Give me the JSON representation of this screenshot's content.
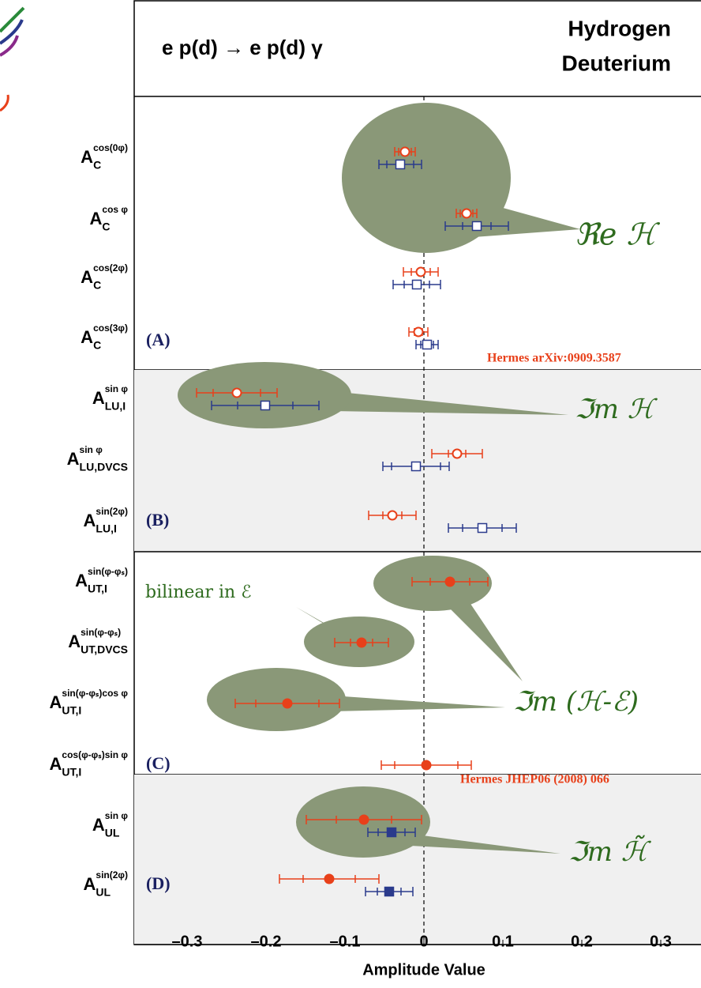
{
  "chart_data": {
    "type": "forest",
    "title": "e p(d) → e p(d) γ",
    "xlabel": "Amplitude Value",
    "xlim": [
      -0.367,
      0.351
    ],
    "xticks": [
      {
        "value": -0.3,
        "label": "–0.3"
      },
      {
        "value": -0.2,
        "label": "–0.2"
      },
      {
        "value": -0.1,
        "label": "–0.1"
      },
      0,
      0.1,
      0.2,
      0.3
    ],
    "series": [
      {
        "name": "Hydrogen",
        "color": "#e8401a"
      },
      {
        "name": "Deuterium",
        "color": "#2a3a8c"
      }
    ],
    "annotations": [
      "ℜe ℋ",
      "ℑm ℋ",
      "bilinear in ℰ",
      "ℑm (ℋ-ℰ)",
      "ℑm ℋ̃"
    ],
    "sections": [
      {
        "label": "(A)",
        "note": "Hermes arXiv:0909.3587",
        "shaded": false,
        "filled": false,
        "categories": [
          {
            "base": "A",
            "sup": "cos(0φ)",
            "sub": "C"
          },
          {
            "base": "A",
            "sup": "cos φ",
            "sub": "C"
          },
          {
            "base": "A",
            "sup": "cos(2φ)",
            "sub": "C"
          },
          {
            "base": "A",
            "sup": "cos(3φ)",
            "sub": "C"
          }
        ],
        "series": [
          {
            "values": [
              -0.024,
              0.054,
              -0.004,
              -0.007
            ],
            "stat": [
              0.008,
              0.008,
              0.012,
              0.005
            ],
            "total": [
              0.013,
              0.013,
              0.022,
              0.012
            ]
          },
          {
            "values": [
              -0.03,
              0.067,
              -0.009,
              0.004
            ],
            "stat": [
              0.017,
              0.018,
              0.016,
              0.008
            ],
            "total": [
              0.027,
              0.04,
              0.03,
              0.014
            ]
          }
        ]
      },
      {
        "label": "(B)",
        "note": null,
        "shaded": true,
        "filled": false,
        "categories": [
          {
            "base": "A",
            "sup": "sin φ",
            "sub": "LU,I"
          },
          {
            "base": "A",
            "sup": "sin φ",
            "sub": "LU,DVCS"
          },
          {
            "base": "A",
            "sup": "sin(2φ)",
            "sub": "LU,I"
          }
        ],
        "series": [
          {
            "values": [
              -0.237,
              0.042,
              -0.04
            ],
            "stat": [
              0.03,
              0.011,
              0.012
            ],
            "total": [
              0.051,
              0.032,
              0.03
            ]
          },
          {
            "values": [
              -0.201,
              -0.01,
              0.074
            ],
            "stat": [
              0.035,
              0.031,
              0.025
            ],
            "total": [
              0.068,
              0.042,
              0.043
            ]
          }
        ]
      },
      {
        "label": "(C)",
        "note": "Hermes JHEP06 (2008) 066",
        "shaded": false,
        "filled": true,
        "categories": [
          {
            "base": "A",
            "sup": "sin(φ-φₛ)",
            "sub": "UT,I"
          },
          {
            "base": "A",
            "sup": "sin(φ-φₛ)",
            "sub": "UT,DVCS"
          },
          {
            "base": "A",
            "sup": "sin(φ-φₛ)cos φ",
            "sub": "UT,I"
          },
          {
            "base": "A",
            "sup": "cos(φ-φₛ)sin φ",
            "sub": "UT,I"
          }
        ],
        "series": [
          {
            "values": [
              0.033,
              -0.079,
              -0.173,
              0.003
            ],
            "stat": [
              0.025,
              0.014,
              0.04,
              0.04
            ],
            "total": [
              0.048,
              0.034,
              0.066,
              0.057
            ]
          },
          {
            "values": [
              null,
              null,
              null,
              null
            ],
            "stat": [
              null,
              null,
              null,
              null
            ],
            "total": [
              null,
              null,
              null,
              null
            ]
          }
        ]
      },
      {
        "label": "(D)",
        "note": null,
        "shaded": true,
        "filled": true,
        "categories": [
          {
            "base": "A",
            "sup": "sin φ",
            "sub": "UL"
          },
          {
            "base": "A",
            "sup": "sin(2φ)",
            "sub": "UL"
          }
        ],
        "series": [
          {
            "values": [
              -0.076,
              -0.12
            ],
            "stat": [
              0.035,
              0.033
            ],
            "total": [
              0.073,
              0.063
            ]
          },
          {
            "values": [
              -0.041,
              -0.044
            ],
            "stat": [
              0.017,
              0.015
            ],
            "total": [
              0.03,
              0.03
            ]
          }
        ]
      }
    ]
  }
}
